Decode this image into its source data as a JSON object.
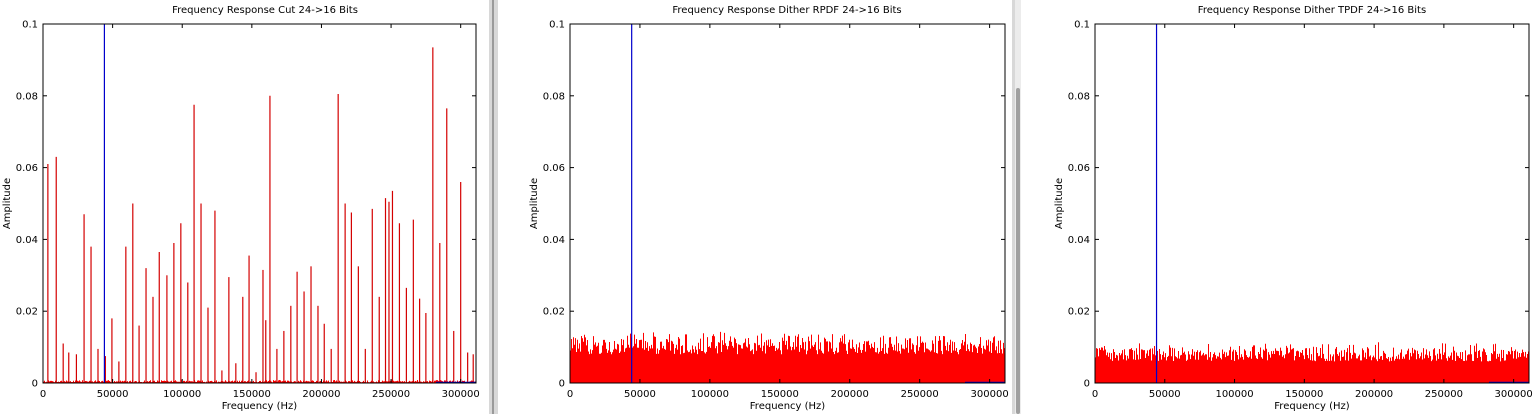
{
  "colors": {
    "signal": "#d40000",
    "noise": "#ff0000",
    "marker": "#0000cc",
    "axis": "#000000",
    "splitter": "#d8d8d8"
  },
  "chart_data": [
    {
      "type": "line",
      "title": "Frequency Response Cut 24->16 Bits",
      "xlabel": "Frequency (Hz)",
      "ylabel": "Amplitude",
      "xlim": [
        0,
        311000
      ],
      "ylim": [
        0,
        0.1
      ],
      "x_ticks": [
        0,
        50000,
        100000,
        150000,
        200000,
        250000,
        300000
      ],
      "x_tick_labels": [
        "0",
        "50000",
        "100000",
        "150000",
        "200000",
        "250000",
        "300000"
      ],
      "y_ticks": [
        0,
        0.02,
        0.04,
        0.06,
        0.08,
        0.1
      ],
      "y_tick_labels": [
        "0",
        "0.02",
        "0.04",
        "0.06",
        "0.08",
        "0.1"
      ],
      "grid": false,
      "noise_floor": [
        0.0002,
        0.0009
      ],
      "marker_line": {
        "x": 44100
      },
      "series": [
        {
          "kind": "spikes",
          "x": [
            3500,
            9500,
            14500,
            18500,
            24000,
            29500,
            34500,
            39500,
            44800,
            49500,
            54500,
            59500,
            64500,
            69000,
            74000,
            79000,
            83500,
            89000,
            94000,
            99000,
            104000,
            108500,
            113500,
            118500,
            123500,
            128500,
            133500,
            138500,
            143500,
            148000,
            153000,
            158000,
            160000,
            163000,
            168000,
            173000,
            178000,
            182500,
            187500,
            192500,
            197500,
            202000,
            207000,
            212000,
            217000,
            221500,
            226500,
            231500,
            236500,
            241500,
            246000,
            248500,
            251000,
            256000,
            261000,
            266000,
            270500,
            275000,
            280000,
            285000,
            290000,
            295000,
            300000,
            305000,
            309000
          ],
          "y": [
            0.061,
            0.063,
            0.011,
            0.0085,
            0.008,
            0.047,
            0.038,
            0.0095,
            0.0075,
            0.018,
            0.006,
            0.038,
            0.05,
            0.016,
            0.032,
            0.024,
            0.0365,
            0.03,
            0.039,
            0.0445,
            0.028,
            0.0775,
            0.05,
            0.021,
            0.048,
            0.0035,
            0.0295,
            0.0055,
            0.024,
            0.0355,
            0.003,
            0.0315,
            0.0175,
            0.08,
            0.0095,
            0.0145,
            0.0215,
            0.031,
            0.0255,
            0.0325,
            0.0215,
            0.0165,
            0.0095,
            0.0805,
            0.05,
            0.0475,
            0.0325,
            0.0095,
            0.0485,
            0.024,
            0.0515,
            0.0505,
            0.0535,
            0.0445,
            0.0265,
            0.0455,
            0.0235,
            0.0195,
            0.0935,
            0.039,
            0.0765,
            0.0145,
            0.056,
            0.0085,
            0.008
          ]
        }
      ]
    },
    {
      "type": "line",
      "title": "Frequency Response Dither RPDF  24->16 Bits",
      "xlabel": "Frequency (Hz)",
      "ylabel": "Amplitude",
      "xlim": [
        0,
        311000
      ],
      "ylim": [
        0,
        0.1
      ],
      "x_ticks": [
        0,
        50000,
        100000,
        150000,
        200000,
        250000,
        300000
      ],
      "x_tick_labels": [
        "0",
        "50000",
        "100000",
        "150000",
        "200000",
        "250000",
        "300000"
      ],
      "y_ticks": [
        0,
        0.02,
        0.04,
        0.06,
        0.08,
        0.1
      ],
      "y_tick_labels": [
        "0",
        "0.02",
        "0.04",
        "0.06",
        "0.08",
        "0.1"
      ],
      "grid": false,
      "noise_floor": [
        0.008,
        0.0145
      ],
      "marker_line": {
        "x": 44100
      }
    },
    {
      "type": "line",
      "title": "Frequency Response Dither TPDF  24->16 Bits",
      "xlabel": "Frequency (Hz)",
      "ylabel": "Amplitude",
      "xlim": [
        0,
        311000
      ],
      "ylim": [
        0,
        0.1
      ],
      "x_ticks": [
        0,
        50000,
        100000,
        150000,
        200000,
        250000,
        300000
      ],
      "x_tick_labels": [
        "0",
        "50000",
        "100000",
        "150000",
        "200000",
        "250000",
        "300000"
      ],
      "y_ticks": [
        0,
        0.02,
        0.04,
        0.06,
        0.08,
        0.1
      ],
      "y_tick_labels": [
        "0",
        "0.02",
        "0.04",
        "0.06",
        "0.08",
        "0.1"
      ],
      "grid": false,
      "noise_floor": [
        0.006,
        0.0115
      ],
      "marker_line": {
        "x": 44100
      }
    }
  ]
}
